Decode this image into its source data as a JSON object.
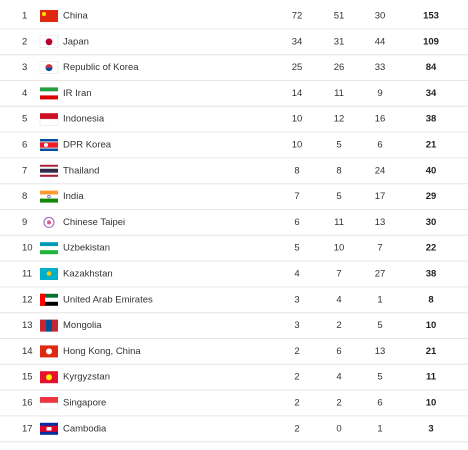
{
  "table": {
    "rows": [
      [
        "1",
        "China",
        "72",
        "51",
        "30",
        "153"
      ],
      [
        "2",
        "Japan",
        "34",
        "31",
        "44",
        "109"
      ],
      [
        "3",
        "Republic of Korea",
        "25",
        "26",
        "33",
        "84"
      ],
      [
        "4",
        "IR Iran",
        "14",
        "11",
        "9",
        "34"
      ],
      [
        "5",
        "Indonesia",
        "10",
        "12",
        "16",
        "38"
      ],
      [
        "6",
        "DPR Korea",
        "10",
        "5",
        "6",
        "21"
      ],
      [
        "7",
        "Thailand",
        "8",
        "8",
        "24",
        "40"
      ],
      [
        "8",
        "India",
        "7",
        "5",
        "17",
        "29"
      ],
      [
        "9",
        "Chinese Taipei",
        "6",
        "11",
        "13",
        "30"
      ],
      [
        "10",
        "Uzbekistan",
        "5",
        "10",
        "7",
        "22"
      ],
      [
        "11",
        "Kazakhstan",
        "4",
        "7",
        "27",
        "38"
      ],
      [
        "12",
        "United Arab Emirates",
        "3",
        "4",
        "1",
        "8"
      ],
      [
        "13",
        "Mongolia",
        "3",
        "2",
        "5",
        "10"
      ],
      [
        "14",
        "Hong Kong, China",
        "2",
        "6",
        "13",
        "21"
      ],
      [
        "15",
        "Kyrgyzstan",
        "2",
        "4",
        "5",
        "11"
      ],
      [
        "16",
        "Singapore",
        "2",
        "2",
        "6",
        "10"
      ],
      [
        "17",
        "Cambodia",
        "2",
        "0",
        "1",
        "3"
      ]
    ]
  }
}
